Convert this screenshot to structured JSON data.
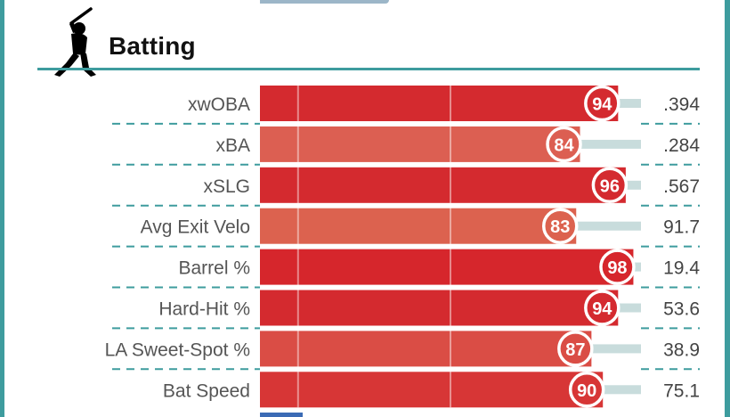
{
  "section": {
    "title": "Batting",
    "icon": "batter-icon",
    "accent_color": "#3e9c9e"
  },
  "chart_data": {
    "type": "bar",
    "orientation": "horizontal",
    "xlim": [
      0,
      100
    ],
    "percentile_scale": "0-100 percentile rank",
    "categories": [
      "xwOBA",
      "xBA",
      "xSLG",
      "Avg Exit Velo",
      "Barrel %",
      "Hard-Hit %",
      "LA Sweet-Spot %",
      "Bat Speed"
    ],
    "percentiles": [
      94,
      84,
      96,
      83,
      98,
      94,
      87,
      90
    ],
    "values": [
      ".394",
      ".284",
      ".567",
      "91.7",
      "19.4",
      "53.6",
      "38.9",
      "75.1"
    ],
    "colors": [
      "#d42a2f",
      "#dc5f52",
      "#d42a2f",
      "#dc624f",
      "#d6262c",
      "#d42a2f",
      "#da4d45",
      "#d73636"
    ],
    "track_color": "#c8dcdc",
    "grid": "vertical reference lines"
  }
}
